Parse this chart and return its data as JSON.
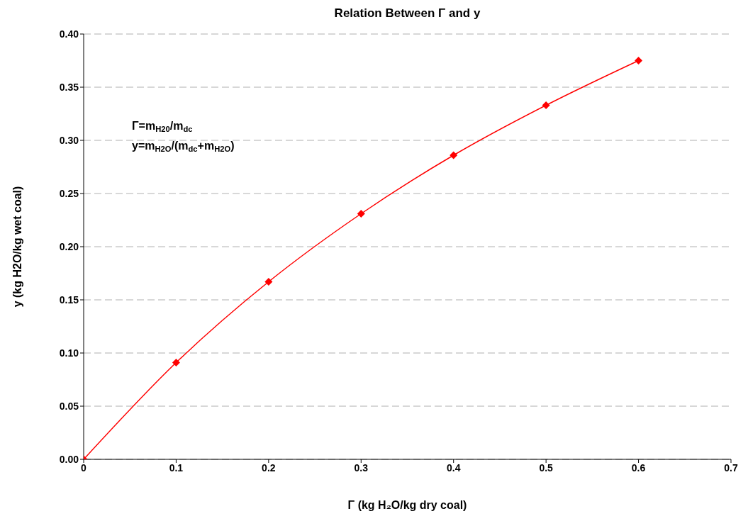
{
  "chart_data": {
    "type": "line",
    "title": "Relation Between Γ and y",
    "xlabel": "Γ (kg H₂O/kg dry coal)",
    "ylabel": "y (kg H2O/kg wet coal)",
    "annotations": [
      "Γ=m$_{H20}$/m$_{dc}$",
      "y=m$_{H2O}$/(m$_{dc}$+m$_{H2O}$)"
    ],
    "x": [
      0,
      0.1,
      0.2,
      0.3,
      0.4,
      0.5,
      0.6
    ],
    "series": [
      {
        "color": "#ff0000",
        "values": [
          0,
          0.091,
          0.167,
          0.231,
          0.286,
          0.333,
          0.375
        ]
      }
    ],
    "xlim": [
      0,
      0.7
    ],
    "xticks": [
      0,
      0.1,
      0.2,
      0.3,
      0.4,
      0.5,
      0.6,
      0.7
    ],
    "ylim": [
      0,
      0.4
    ],
    "yticks": [
      {
        "value": 0,
        "label": "0.00"
      },
      {
        "value": 0.05,
        "label": "0.05"
      },
      {
        "value": 0.1,
        "label": "0.10"
      },
      {
        "value": 0.15,
        "label": "0.15"
      },
      {
        "value": 0.2,
        "label": "0.20"
      },
      {
        "value": 0.25,
        "label": "0.25"
      },
      {
        "value": 0.3,
        "label": "0.30"
      },
      {
        "value": 0.35,
        "label": "0.35"
      },
      {
        "value": 0.4,
        "label": "0.40"
      }
    ],
    "grid": "y",
    "marker": "diamond",
    "line_style": "solid",
    "legend": false
  }
}
